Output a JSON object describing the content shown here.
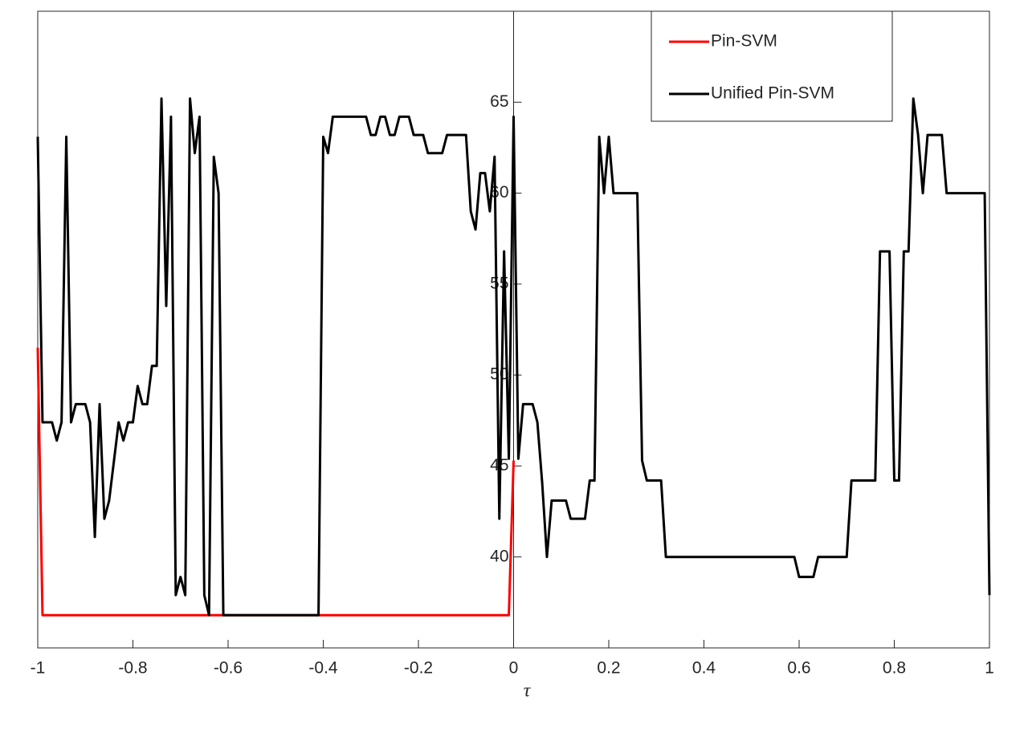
{
  "chart_data": {
    "type": "line",
    "xlabel": "τ",
    "xlim": [
      -1,
      1
    ],
    "ylim": [
      35,
      70
    ],
    "xticks": [
      -1,
      -0.8,
      -0.6,
      -0.4,
      -0.2,
      0,
      0.2,
      0.4,
      0.6,
      0.8,
      1
    ],
    "yticks": [
      40,
      45,
      50,
      55,
      60,
      65
    ],
    "legend": "top-right",
    "series": [
      {
        "name": "Pin-SVM",
        "color": "#ff0000",
        "x": [
          -1,
          -0.99,
          -0.01,
          0
        ],
        "values": [
          51.5,
          36.8,
          36.8,
          45.3
        ]
      },
      {
        "name": "Unified Pin-SVM",
        "color": "#000000",
        "x": [
          -1,
          -0.99,
          -0.97,
          -0.96,
          -0.95,
          -0.94,
          -0.93,
          -0.92,
          -0.9,
          -0.89,
          -0.88,
          -0.87,
          -0.86,
          -0.85,
          -0.83,
          -0.82,
          -0.81,
          -0.8,
          -0.79,
          -0.78,
          -0.77,
          -0.76,
          -0.75,
          -0.74,
          -0.73,
          -0.72,
          -0.71,
          -0.7,
          -0.69,
          -0.68,
          -0.67,
          -0.66,
          -0.65,
          -0.64,
          -0.63,
          -0.62,
          -0.61,
          -0.41,
          -0.4,
          -0.39,
          -0.38,
          -0.31,
          -0.3,
          -0.29,
          -0.28,
          -0.27,
          -0.26,
          -0.25,
          -0.24,
          -0.22,
          -0.21,
          -0.19,
          -0.18,
          -0.15,
          -0.14,
          -0.1,
          -0.09,
          -0.08,
          -0.07,
          -0.06,
          -0.05,
          -0.04,
          -0.03,
          -0.02,
          -0.01,
          0,
          0.01,
          0.02,
          0.04,
          0.05,
          0.06,
          0.07,
          0.08,
          0.11,
          0.12,
          0.15,
          0.16,
          0.17,
          0.18,
          0.19,
          0.2,
          0.21,
          0.26,
          0.27,
          0.28,
          0.31,
          0.32,
          0.59,
          0.6,
          0.63,
          0.64,
          0.7,
          0.71,
          0.76,
          0.77,
          0.79,
          0.8,
          0.81,
          0.82,
          0.83,
          0.84,
          0.85,
          0.86,
          0.87,
          0.9,
          0.91,
          0.99,
          1
        ],
        "values": [
          63.1,
          47.4,
          47.4,
          46.4,
          47.4,
          63.1,
          47.4,
          48.4,
          48.4,
          47.4,
          41.1,
          48.4,
          42.1,
          43.1,
          47.4,
          46.4,
          47.4,
          47.4,
          49.4,
          48.4,
          48.4,
          50.5,
          50.5,
          65.2,
          53.8,
          64.2,
          37.9,
          38.9,
          37.9,
          65.2,
          62.2,
          64.2,
          37.9,
          36.8,
          62.0,
          60.0,
          36.8,
          36.8,
          63.1,
          62.2,
          64.2,
          64.2,
          63.2,
          63.2,
          64.2,
          64.2,
          63.2,
          63.2,
          64.2,
          64.2,
          63.2,
          63.2,
          62.2,
          62.2,
          63.2,
          63.2,
          59.0,
          58.0,
          61.1,
          61.1,
          59.0,
          62.0,
          42.1,
          56.8,
          45.4,
          64.2,
          45.4,
          48.4,
          48.4,
          47.4,
          44.1,
          40.0,
          43.1,
          43.1,
          42.1,
          42.1,
          44.2,
          44.2,
          63.1,
          60.0,
          63.1,
          60.0,
          60.0,
          45.3,
          44.2,
          44.2,
          40.0,
          40.0,
          38.9,
          38.9,
          40.0,
          40.0,
          44.2,
          44.2,
          56.8,
          56.8,
          44.2,
          44.2,
          56.8,
          56.8,
          65.2,
          63.2,
          60.0,
          63.2,
          63.2,
          60.0,
          60.0,
          37.9
        ]
      }
    ]
  }
}
